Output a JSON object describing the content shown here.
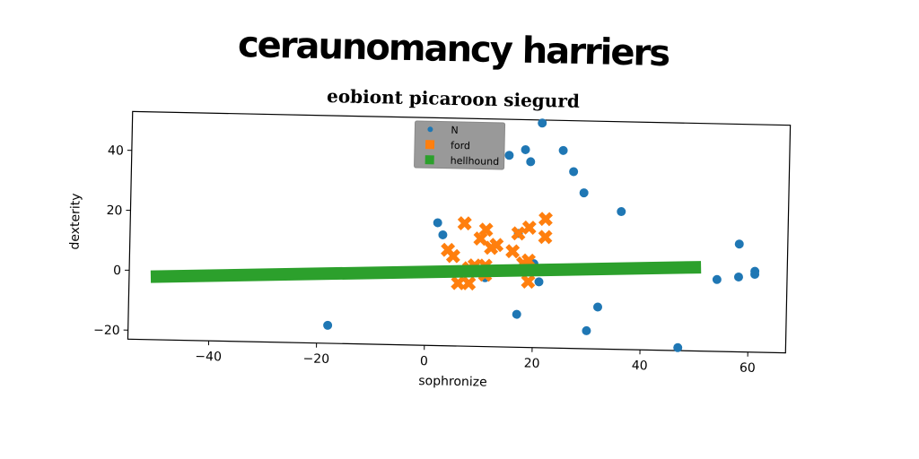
{
  "title": "ceraunomancy harriers",
  "chart_data": {
    "type": "scatter",
    "title": "eobiont picaroon siegurd",
    "xlabel": "sophronize",
    "ylabel": "dexterity",
    "xlim": [
      -55,
      67
    ],
    "ylim": [
      -23,
      53
    ],
    "xticks": [
      -40,
      -20,
      0,
      20,
      40,
      60
    ],
    "yticks": [
      -20,
      0,
      20,
      40
    ],
    "xtick_labels": [
      "−40",
      "−20",
      "0",
      "20",
      "40",
      "60"
    ],
    "ytick_labels": [
      "−20",
      "0",
      "20",
      "40"
    ],
    "legend_position": "top-center",
    "series": [
      {
        "name": "N",
        "marker": "circle",
        "color": "#1f77b4",
        "points": [
          [
            21,
            52
          ],
          [
            12,
            44
          ],
          [
            15,
            41
          ],
          [
            18,
            43
          ],
          [
            25,
            43
          ],
          [
            19,
            39
          ],
          [
            27,
            36
          ],
          [
            29,
            29
          ],
          [
            36,
            23
          ],
          [
            2,
            18
          ],
          [
            3,
            14
          ],
          [
            17,
            15
          ],
          [
            20,
            5
          ],
          [
            11,
            0
          ],
          [
            21,
            -1
          ],
          [
            17,
            -12
          ],
          [
            32,
            -9
          ],
          [
            30,
            -17
          ],
          [
            -18,
            -17
          ],
          [
            47,
            -22
          ],
          [
            54,
            1
          ],
          [
            58,
            2
          ],
          [
            61,
            4
          ],
          [
            61,
            3
          ],
          [
            58,
            13
          ]
        ]
      },
      {
        "name": "ford",
        "marker": "x",
        "color": "#ff7f0e",
        "points": [
          [
            7,
            18
          ],
          [
            11,
            16
          ],
          [
            22,
            20
          ],
          [
            19,
            17
          ],
          [
            17,
            15
          ],
          [
            10,
            13
          ],
          [
            13,
            11
          ],
          [
            12,
            10
          ],
          [
            16,
            9
          ],
          [
            4,
            9
          ],
          [
            5,
            7
          ],
          [
            22,
            14
          ],
          [
            19,
            6
          ],
          [
            18,
            5
          ],
          [
            9,
            4
          ],
          [
            11,
            4
          ],
          [
            8,
            3
          ],
          [
            6,
            -2
          ],
          [
            8,
            -2
          ],
          [
            19,
            -1
          ],
          [
            11,
            1
          ]
        ]
      },
      {
        "name": "hellhound",
        "marker": "square",
        "color": "#2ca02c",
        "points": [
          [
            -51,
            -2
          ],
          [
            51,
            5
          ]
        ]
      }
    ]
  }
}
